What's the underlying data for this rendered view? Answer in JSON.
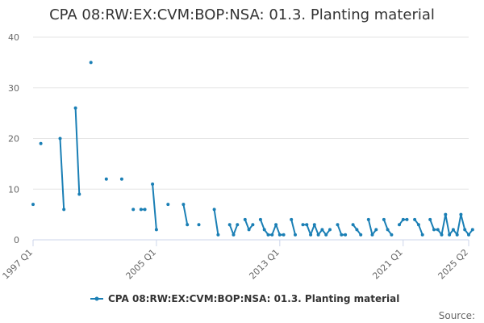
{
  "title": "CPA 08:RW:EX:CVM:BOP:NSA: 01.3. Planting material",
  "source_label": "Source:",
  "colors": {
    "series": "#1a7fb5",
    "grid": "#e6e6e6",
    "axis": "#ccd6eb"
  },
  "chart_data": {
    "type": "line",
    "title": "CPA 08:RW:EX:CVM:BOP:NSA: 01.3. Planting material",
    "xlabel": "",
    "ylabel": "",
    "x_range": [
      "1997 Q1",
      "2025 Q2"
    ],
    "xticks": [
      "1997 Q1",
      "2005 Q1",
      "2013 Q1",
      "2021 Q1",
      "2025 Q2"
    ],
    "ylim": [
      0,
      40
    ],
    "yticks": [
      0,
      10,
      20,
      30,
      40
    ],
    "grid": true,
    "legend_position": "bottom",
    "series": [
      {
        "name": "CPA 08:RW:EX:CVM:BOP:NSA: 01.3. Planting material",
        "points": [
          [
            "1997 Q1",
            7
          ],
          [
            "1997 Q3",
            19
          ],
          [
            "1998 Q4",
            20
          ],
          [
            "1999 Q1",
            6
          ],
          [
            "1999 Q4",
            26
          ],
          [
            "2000 Q1",
            9
          ],
          [
            "2000 Q4",
            35
          ],
          [
            "2001 Q4",
            12
          ],
          [
            "2002 Q4",
            12
          ],
          [
            "2003 Q3",
            6
          ],
          [
            "2004 Q1",
            6
          ],
          [
            "2004 Q2",
            6
          ],
          [
            "2004 Q4",
            11
          ],
          [
            "2005 Q1",
            2
          ],
          [
            "2005 Q4",
            7
          ],
          [
            "2006 Q4",
            7
          ],
          [
            "2007 Q1",
            3
          ],
          [
            "2007 Q4",
            3
          ],
          [
            "2008 Q4",
            6
          ],
          [
            "2009 Q1",
            1
          ],
          [
            "2009 Q4",
            3
          ],
          [
            "2010 Q1",
            1
          ],
          [
            "2010 Q2",
            3
          ],
          [
            "2010 Q4",
            4
          ],
          [
            "2011 Q1",
            2
          ],
          [
            "2011 Q2",
            3
          ],
          [
            "2011 Q4",
            4
          ],
          [
            "2012 Q1",
            2
          ],
          [
            "2012 Q2",
            1
          ],
          [
            "2012 Q3",
            1
          ],
          [
            "2012 Q4",
            3
          ],
          [
            "2013 Q1",
            1
          ],
          [
            "2013 Q2",
            1
          ],
          [
            "2013 Q4",
            4
          ],
          [
            "2014 Q1",
            1
          ],
          [
            "2014 Q3",
            3
          ],
          [
            "2014 Q4",
            3
          ],
          [
            "2015 Q1",
            1
          ],
          [
            "2015 Q2",
            3
          ],
          [
            "2015 Q3",
            1
          ],
          [
            "2015 Q4",
            2
          ],
          [
            "2016 Q1",
            1
          ],
          [
            "2016 Q2",
            2
          ],
          [
            "2016 Q4",
            3
          ],
          [
            "2017 Q1",
            1
          ],
          [
            "2017 Q2",
            1
          ],
          [
            "2017 Q4",
            3
          ],
          [
            "2018 Q1",
            2
          ],
          [
            "2018 Q2",
            1
          ],
          [
            "2018 Q4",
            4
          ],
          [
            "2019 Q1",
            1
          ],
          [
            "2019 Q2",
            2
          ],
          [
            "2019 Q4",
            4
          ],
          [
            "2020 Q1",
            2
          ],
          [
            "2020 Q2",
            1
          ],
          [
            "2020 Q4",
            3
          ],
          [
            "2021 Q1",
            4
          ],
          [
            "2021 Q2",
            4
          ],
          [
            "2021 Q4",
            4
          ],
          [
            "2022 Q1",
            3
          ],
          [
            "2022 Q2",
            1
          ],
          [
            "2022 Q4",
            4
          ],
          [
            "2023 Q1",
            2
          ],
          [
            "2023 Q2",
            2
          ],
          [
            "2023 Q3",
            1
          ],
          [
            "2023 Q4",
            5
          ],
          [
            "2024 Q1",
            1
          ],
          [
            "2024 Q2",
            2
          ],
          [
            "2024 Q3",
            1
          ],
          [
            "2024 Q4",
            5
          ],
          [
            "2025 Q1",
            2
          ],
          [
            "2025 Q2",
            1
          ],
          [
            "2025 Q3",
            2
          ]
        ]
      }
    ]
  }
}
